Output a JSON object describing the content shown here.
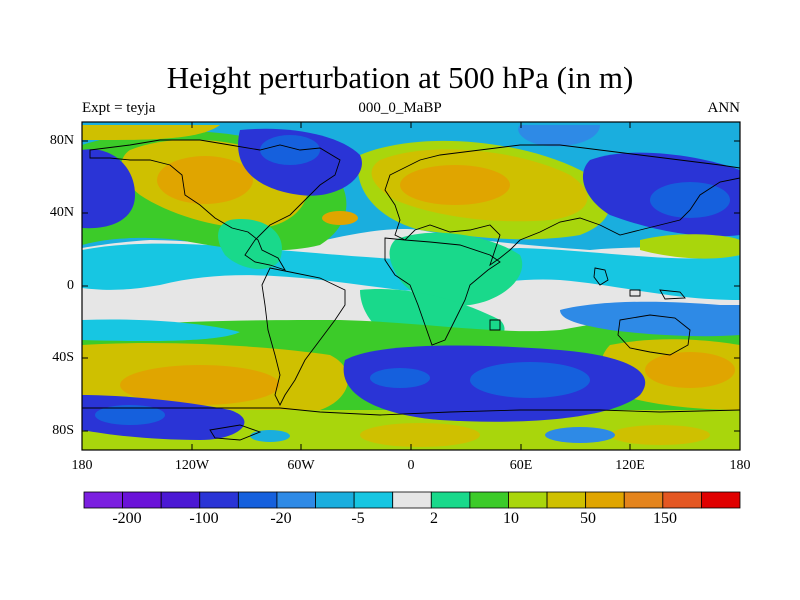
{
  "title": "Height perturbation at 500 hPa (in m)",
  "left_label": "Expt = teyja",
  "center_label": "000_0_MaBP",
  "right_label": "ANN",
  "lat_labels": [
    "80N",
    "40N",
    "0",
    "40S",
    "80S"
  ],
  "lon_labels": [
    "180",
    "120W",
    "60W",
    "0",
    "60E",
    "120E",
    "180"
  ],
  "colorbar": {
    "colors": [
      "#7b1fe0",
      "#6a12d8",
      "#4b18d4",
      "#2a34d6",
      "#1560dd",
      "#2e8ae6",
      "#1aaede",
      "#17c6e2",
      "#e6e6e6",
      "#19d98b",
      "#3ccb29",
      "#a9d60c",
      "#cfc000",
      "#e0a500",
      "#e4841c",
      "#e45722",
      "#e00000"
    ],
    "labels": [
      "-200",
      "-100",
      "-20",
      "-5",
      "2",
      "10",
      "50",
      "150"
    ]
  }
}
